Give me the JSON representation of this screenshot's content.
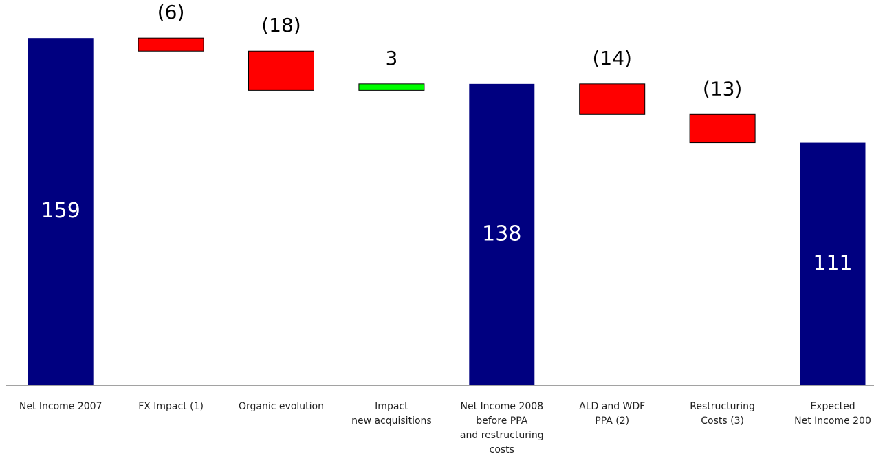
{
  "chart_data": {
    "type": "waterfall",
    "categories": [
      "Net Income 2007",
      "FX Impact (1)",
      "Organic evolution",
      "Impact\nnew acquisitions",
      "Net Income 2008\nbefore PPA\nand restructuring\ncosts",
      "ALD and WDF\nPPA (2)",
      "Restructuring\nCosts (3)",
      "Expected\nNet Income 200"
    ],
    "values": [
      159,
      -6,
      -18,
      3,
      138,
      -14,
      -13,
      111
    ],
    "value_labels": [
      "159",
      "(6)",
      "(18)",
      "3",
      "138",
      "(14)",
      "(13)",
      "111"
    ],
    "ylim": [
      0,
      160
    ],
    "color_total": "#000080",
    "color_decrease": "#ff0000",
    "color_increase": "#00ff00"
  }
}
